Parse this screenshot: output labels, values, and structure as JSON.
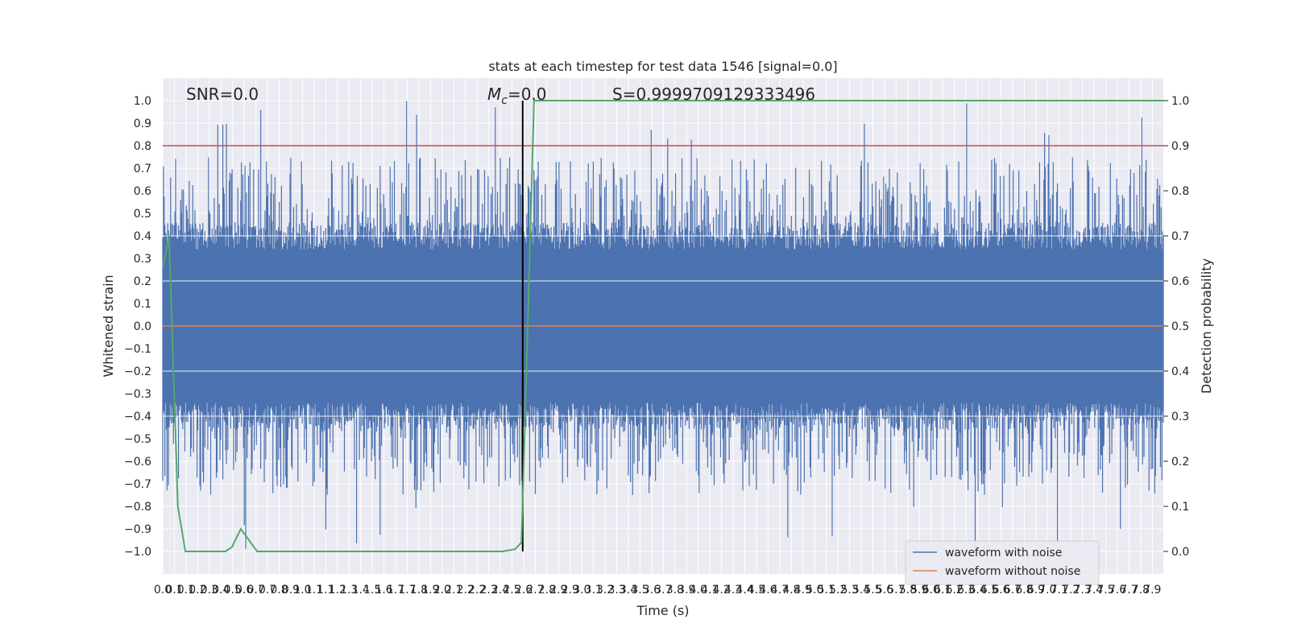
{
  "chart_data": {
    "type": "line",
    "title": "stats at each timestep for test data 1546 [signal=0.0]",
    "xlabel": "Time (s)",
    "ylabel": "Whitened strain",
    "y2label": "Detection probability",
    "xlim": [
      0.0,
      7.95
    ],
    "ylim": [
      -1.1,
      1.1
    ],
    "y2lim": [
      -0.05,
      1.05
    ],
    "grid": true,
    "legend_position": "bottom-right",
    "x_tick_labels": [
      "0.0",
      "0.1",
      "0.1",
      "0.2",
      "0.3",
      "0.4",
      "0.5",
      "0.6",
      "0.7",
      "0.7",
      "0.8",
      "0.9",
      "1.0",
      "1.1",
      "1.1",
      "1.2",
      "1.3",
      "1.4",
      "1.5",
      "1.6",
      "1.7",
      "1.7",
      "1.8",
      "1.9",
      "2.0",
      "2.1",
      "2.2",
      "2.2",
      "2.3",
      "2.4",
      "2.5",
      "2.6",
      "2.7",
      "2.8",
      "2.9",
      "2.9",
      "3.0",
      "3.1",
      "3.2",
      "3.3",
      "3.4",
      "3.5",
      "3.6",
      "3.7",
      "3.8",
      "3.9",
      "4.0",
      "4.1",
      "4.2",
      "4.3",
      "4.4",
      "4.5",
      "4.6",
      "4.7",
      "4.8",
      "4.9",
      "5.0",
      "5.1",
      "5.2",
      "5.3",
      "5.4",
      "5.5",
      "5.6",
      "5.7",
      "5.8",
      "5.9",
      "6.0",
      "6.1",
      "6.2",
      "6.3",
      "6.4",
      "6.5",
      "6.6",
      "6.7",
      "6.8",
      "6.9",
      "7.0",
      "7.1",
      "7.2",
      "7.3",
      "7.4",
      "7.5",
      "7.6",
      "7.7",
      "7.8",
      "7.9"
    ],
    "y_ticks": [
      -1.0,
      -0.9,
      -0.8,
      -0.7,
      -0.6,
      -0.5,
      -0.4,
      -0.3,
      -0.2,
      -0.1,
      0.0,
      0.1,
      0.2,
      0.3,
      0.4,
      0.5,
      0.6,
      0.7,
      0.8,
      0.9,
      1.0
    ],
    "y2_ticks": [
      0.0,
      0.1,
      0.2,
      0.3,
      0.4,
      0.5,
      0.6,
      0.7,
      0.8,
      0.9,
      1.0
    ],
    "series": [
      {
        "name": "waveform with noise",
        "color": "#4c72b0",
        "kind": "dense noise waveform, amplitude mostly within ±0.4 with spikes to ±1.0"
      },
      {
        "name": "waveform without noise",
        "color": "#dd8452",
        "values_constant": 0.0
      }
    ],
    "detection_probability": {
      "color": "#55a868",
      "x": [
        0.0,
        0.05,
        0.12,
        0.18,
        0.2,
        0.5,
        0.55,
        0.62,
        0.75,
        1.0,
        2.0,
        2.7,
        2.8,
        2.85,
        2.9,
        2.95,
        7.95
      ],
      "values": [
        0.63,
        0.7,
        0.1,
        0.0,
        0.0,
        0.0,
        0.01,
        0.05,
        0.0,
        0.0,
        0.0,
        0.0,
        0.005,
        0.02,
        0.5,
        1.0,
        1.0
      ]
    },
    "threshold_line": {
      "color": "#c44e52",
      "y2": 0.9
    },
    "marker_line": {
      "color": "#000000",
      "x": 2.86
    },
    "annotations": [
      {
        "text": "SNR=0.0"
      },
      {
        "text_main": "M",
        "text_sub": "c",
        "text_rest": "=0.0"
      },
      {
        "text": "S=0.9999709129333496"
      }
    ],
    "annotation_colors": "#262626"
  }
}
